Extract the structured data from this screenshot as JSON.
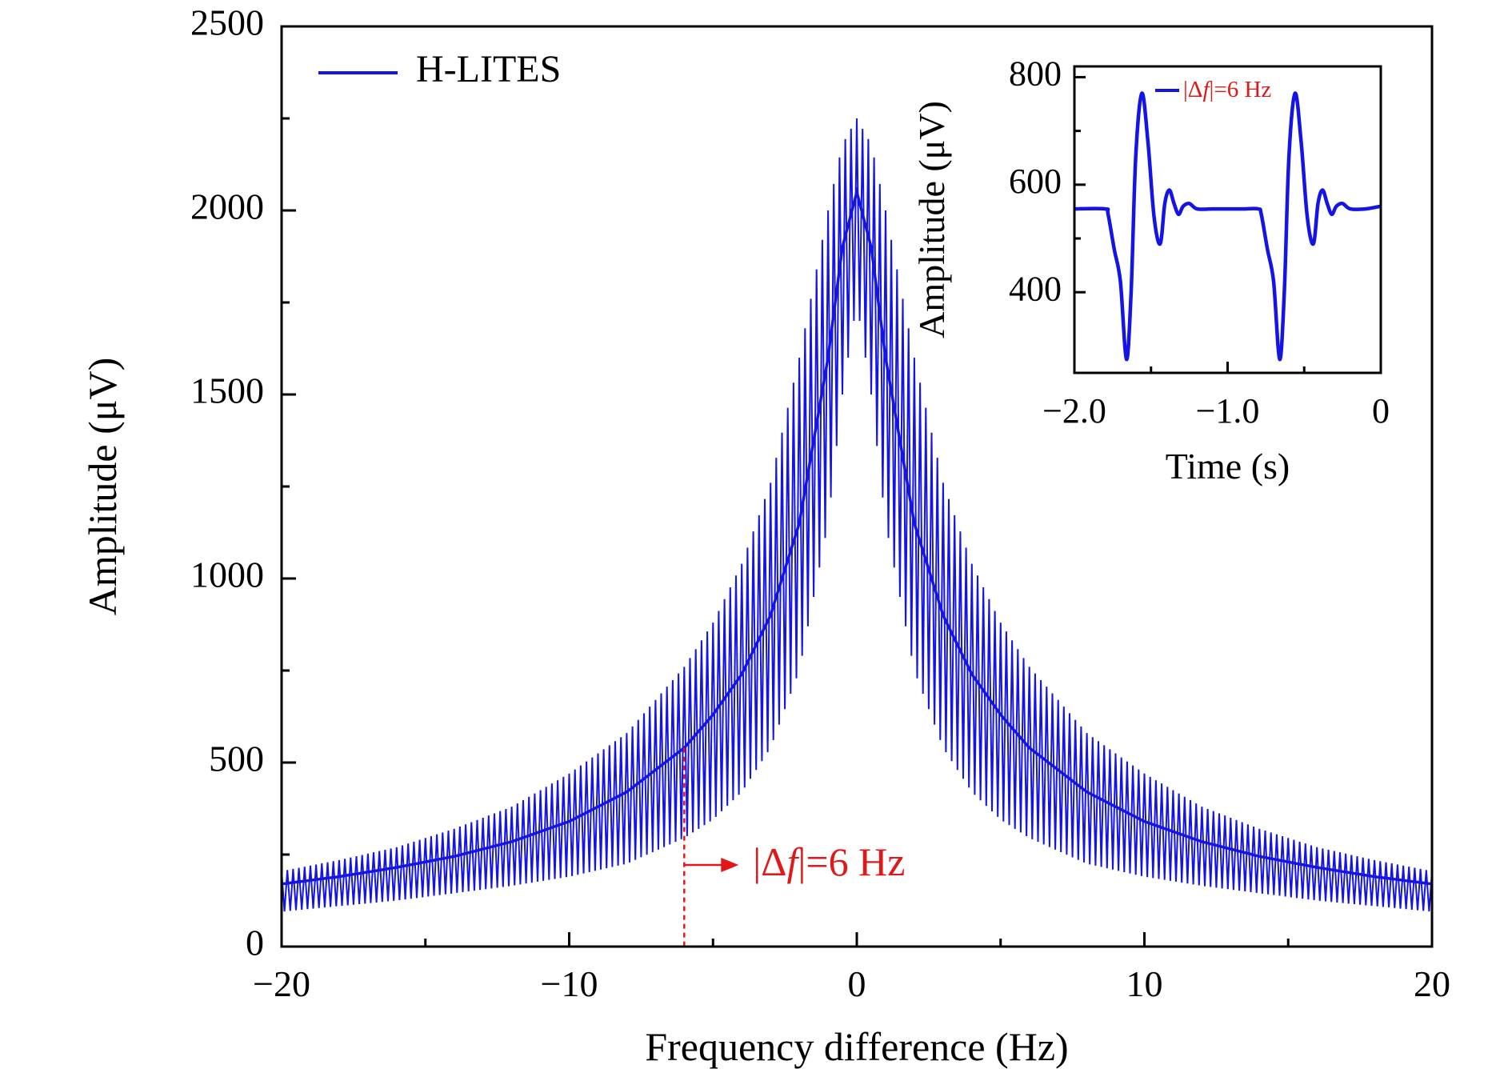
{
  "colors": {
    "series": "#1414e6",
    "annotation": "#e01818",
    "axis": "#000000",
    "background": "#ffffff"
  },
  "chart_data": [
    {
      "type": "line",
      "xlabel": "Frequency difference (Hz)",
      "ylabel": "Amplitude (μV)",
      "xlim": [
        -20,
        20
      ],
      "ylim": [
        0,
        2500
      ],
      "xticks": [
        -20,
        -10,
        0,
        10,
        20
      ],
      "xtick_labels": [
        "−20",
        "−10",
        "0",
        "10",
        "20"
      ],
      "yticks": [
        0,
        500,
        1000,
        1500,
        2000,
        2500
      ],
      "ytick_labels": [
        "0",
        "500",
        "1000",
        "1500",
        "2000",
        "2500"
      ],
      "legend": {
        "position": "top-left",
        "entries": [
          "H-LITES"
        ]
      },
      "grid": false,
      "series": [
        {
          "name": "H-LITES",
          "center_curve": {
            "x": [
              -20,
              -18,
              -16,
              -14,
              -12,
              -10,
              -8,
              -6,
              -5,
              -4,
              -3,
              -2,
              -1,
              -0.5,
              0,
              0.5,
              1,
              2,
              3,
              4,
              5,
              6,
              8,
              10,
              12,
              14,
              16,
              18,
              20
            ],
            "y": [
              170,
              190,
              215,
              245,
              285,
              340,
              420,
              540,
              630,
              740,
              900,
              1150,
              1600,
              1900,
              2050,
              1900,
              1600,
              1150,
              900,
              740,
              630,
              540,
              420,
              340,
              285,
              245,
              215,
              190,
              170
            ]
          },
          "envelope_upper": {
            "x": [
              -20,
              -18,
              -16,
              -14,
              -12,
              -10,
              -8,
              -6,
              -5,
              -4,
              -3,
              -2,
              -1,
              -0.5,
              0,
              0.5,
              1,
              2,
              3,
              4,
              5,
              6,
              8,
              10,
              12,
              14,
              16,
              18,
              20
            ],
            "y": [
              205,
              235,
              270,
              320,
              380,
              470,
              580,
              760,
              880,
              1040,
              1260,
              1600,
              2000,
              2180,
              2250,
              2180,
              2000,
              1600,
              1260,
              1040,
              880,
              760,
              580,
              470,
              380,
              320,
              270,
              235,
              205
            ]
          },
          "envelope_lower": {
            "x": [
              -20,
              -18,
              -16,
              -14,
              -12,
              -10,
              -8,
              -6,
              -5,
              -4,
              -3,
              -2,
              -1,
              -0.5,
              0,
              0.5,
              1,
              2,
              3,
              4,
              5,
              6,
              8,
              10,
              12,
              14,
              16,
              18,
              20
            ],
            "y": [
              95,
              110,
              125,
              145,
              165,
              190,
              225,
              295,
              345,
              420,
              540,
              750,
              1150,
              1500,
              1750,
              1500,
              1150,
              750,
              540,
              420,
              345,
              295,
              225,
              190,
              165,
              145,
              125,
              110,
              95
            ]
          },
          "oscillation_period_hz": 0.2
        }
      ],
      "annotations": [
        {
          "text_prefix": "|Δ",
          "text_var": "f",
          "text_suffix": "|=6 Hz",
          "x": -6,
          "marker": "dashed vertical line with arrow"
        }
      ]
    },
    {
      "type": "line",
      "inset": true,
      "xlabel": "Time (s)",
      "ylabel": "Amplitude (μV)",
      "xlim": [
        -2.0,
        0
      ],
      "ylim": [
        250,
        820
      ],
      "xticks": [
        -2.0,
        -1.0,
        0
      ],
      "xtick_labels": [
        "−2.0",
        "−1.0",
        "0"
      ],
      "yticks": [
        400,
        600,
        800
      ],
      "ytick_labels": [
        "400",
        "600",
        "800"
      ],
      "legend": {
        "position": "top",
        "entries": [
          {
            "prefix": "|Δ",
            "var": "f",
            "suffix": "|=6 Hz"
          }
        ]
      },
      "series": [
        {
          "name": "|Δf|=6 Hz",
          "x": [
            -2.0,
            -1.8,
            -1.78,
            -1.74,
            -1.7,
            -1.66,
            -1.63,
            -1.6,
            -1.56,
            -1.52,
            -1.48,
            -1.44,
            -1.41,
            -1.38,
            -1.35,
            -1.32,
            -1.29,
            -1.25,
            -1.2,
            -1.1,
            -1.0,
            -0.9,
            -0.8,
            -0.78,
            -0.74,
            -0.7,
            -0.66,
            -0.63,
            -0.6,
            -0.56,
            -0.52,
            -0.48,
            -0.44,
            -0.41,
            -0.38,
            -0.35,
            -0.32,
            -0.29,
            -0.25,
            -0.2,
            -0.1,
            0
          ],
          "y": [
            555,
            555,
            545,
            480,
            420,
            275,
            400,
            650,
            770,
            680,
            540,
            490,
            565,
            590,
            565,
            545,
            560,
            565,
            555,
            555,
            555,
            555,
            555,
            545,
            480,
            420,
            275,
            400,
            650,
            770,
            680,
            540,
            490,
            565,
            590,
            565,
            545,
            560,
            565,
            555,
            555,
            560
          ]
        }
      ]
    }
  ]
}
